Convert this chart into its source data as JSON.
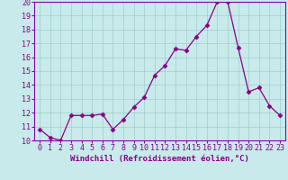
{
  "x": [
    0,
    1,
    2,
    3,
    4,
    5,
    6,
    7,
    8,
    9,
    10,
    11,
    12,
    13,
    14,
    15,
    16,
    17,
    18,
    19,
    20,
    21,
    22,
    23
  ],
  "y": [
    10.8,
    10.2,
    10.0,
    11.8,
    11.8,
    11.8,
    11.9,
    10.8,
    11.5,
    12.4,
    13.1,
    14.7,
    15.4,
    16.6,
    16.5,
    17.5,
    18.3,
    20.0,
    20.0,
    16.7,
    13.5,
    13.8,
    12.5,
    11.8
  ],
  "line_color": "#880088",
  "marker": "D",
  "markersize": 2.5,
  "linewidth": 0.9,
  "bg_color": "#c8eaea",
  "plot_bg_color": "#c8eaea",
  "grid_color": "#a0cccc",
  "spine_color": "#8800aa",
  "xlabel": "Windchill (Refroidissement éolien,°C)",
  "xlabel_fontsize": 6.5,
  "tick_fontsize": 6.0,
  "ylim": [
    10,
    20
  ],
  "xlim": [
    -0.5,
    23.5
  ],
  "yticks": [
    10,
    11,
    12,
    13,
    14,
    15,
    16,
    17,
    18,
    19,
    20
  ],
  "xticks": [
    0,
    1,
    2,
    3,
    4,
    5,
    6,
    7,
    8,
    9,
    10,
    11,
    12,
    13,
    14,
    15,
    16,
    17,
    18,
    19,
    20,
    21,
    22,
    23
  ]
}
